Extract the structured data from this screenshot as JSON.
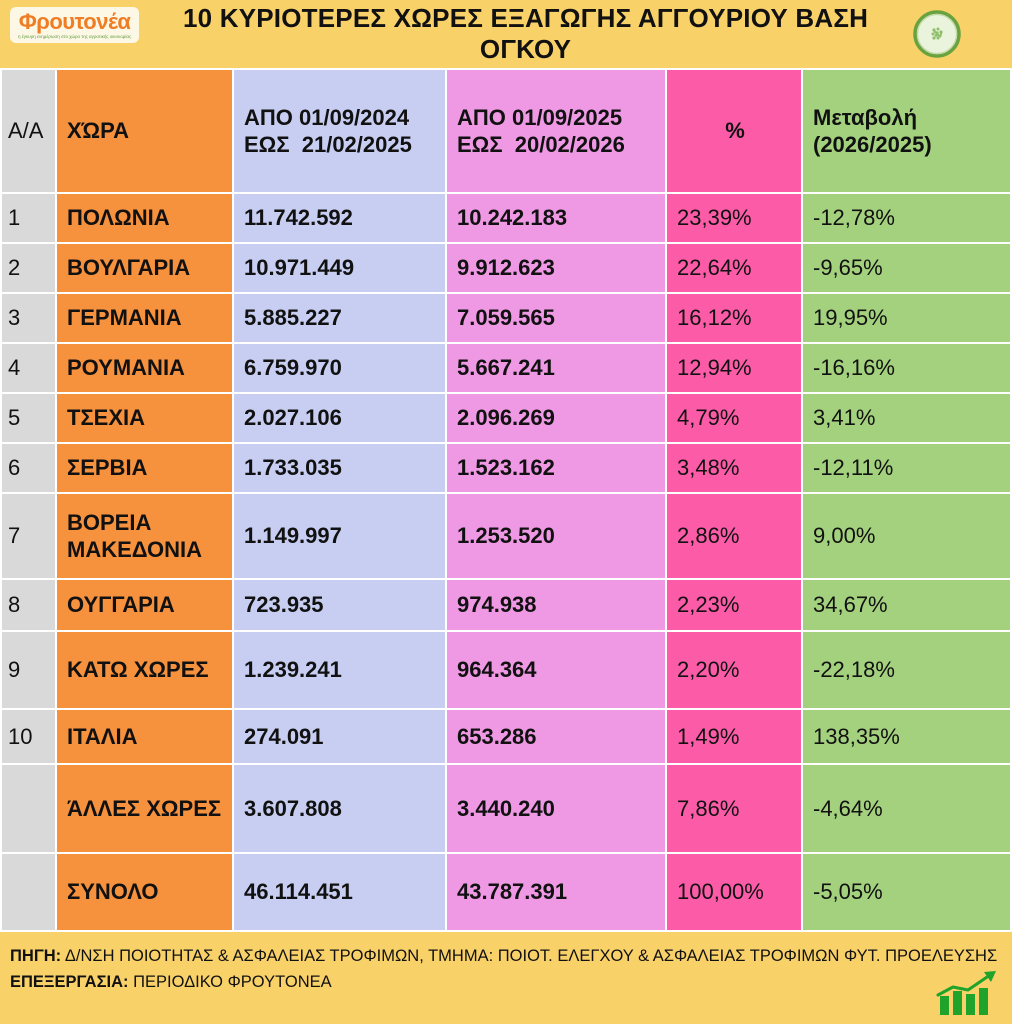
{
  "logo": {
    "name": "Φρουτονέα",
    "tagline": "η έγκυρη ενημέρωση στο χώρο της αγροτικής οικονομίας"
  },
  "header": {
    "title": "10 ΚΥΡΙΟΤΕΡΕΣ ΧΩΡΕΣ ΕΞΑΓΩΓΗΣ ΑΓΓΟΥΡΙΟΥ ΒΑΣΗ ΟΓΚΟΥ",
    "cucumber_icon": "cucumber-slice"
  },
  "table": {
    "columns": {
      "index": "A/A",
      "country": "ΧΏΡΑ",
      "period1": "ΑΠΟ 01/09/2024\nΕΩΣ  21/02/2025",
      "period2": "ΑΠΟ 01/09/2025\nΕΩΣ  20/02/2026",
      "percent": "%",
      "change": "Μεταβολή\n(2026/2025)"
    },
    "rows": [
      {
        "num": "1",
        "country": "ΠΟΛΩΝΙΑ",
        "v2024": "11.742.592",
        "v2025": "10.242.183",
        "pct": "23,39%",
        "change": "-12,78%"
      },
      {
        "num": "2",
        "country": "ΒΟΥΛΓΑΡΙΑ",
        "v2024": "10.971.449",
        "v2025": "9.912.623",
        "pct": "22,64%",
        "change": "-9,65%"
      },
      {
        "num": "3",
        "country": "ΓΕΡΜΑΝΙΑ",
        "v2024": "5.885.227",
        "v2025": "7.059.565",
        "pct": "16,12%",
        "change": "19,95%"
      },
      {
        "num": "4",
        "country": "ΡΟΥΜΑΝΙΑ",
        "v2024": "6.759.970",
        "v2025": "5.667.241",
        "pct": "12,94%",
        "change": "-16,16%"
      },
      {
        "num": "5",
        "country": "ΤΣΕΧΙΑ",
        "v2024": "2.027.106",
        "v2025": "2.096.269",
        "pct": "4,79%",
        "change": "3,41%"
      },
      {
        "num": "6",
        "country": "ΣΕΡΒΙΑ",
        "v2024": "1.733.035",
        "v2025": "1.523.162",
        "pct": "3,48%",
        "change": "-12,11%"
      },
      {
        "num": "7",
        "country": "ΒΟΡΕΙΑ ΜΑΚΕΔΟΝΙΑ",
        "v2024": "1.149.997",
        "v2025": "1.253.520",
        "pct": "2,86%",
        "change": "9,00%"
      },
      {
        "num": "8",
        "country": "ΟΥΓΓΑΡΙΑ",
        "v2024": "723.935",
        "v2025": "974.938",
        "pct": "2,23%",
        "change": "34,67%"
      },
      {
        "num": "9",
        "country": "ΚΑΤΩ ΧΩΡΕΣ",
        "v2024": "1.239.241",
        "v2025": "964.364",
        "pct": "2,20%",
        "change": "-22,18%"
      },
      {
        "num": "10",
        "country": "ΙΤΑΛΙΑ",
        "v2024": "274.091",
        "v2025": "653.286",
        "pct": "1,49%",
        "change": "138,35%"
      },
      {
        "num": "",
        "country": "ΆΛΛΕΣ ΧΩΡΕΣ",
        "v2024": "3.607.808",
        "v2025": "3.440.240",
        "pct": "7,86%",
        "change": "-4,64%"
      },
      {
        "num": "",
        "country": "ΣΥΝΟΛΟ",
        "v2024": "46.114.451",
        "v2025": "43.787.391",
        "pct": "100,00%",
        "change": "-5,05%"
      }
    ]
  },
  "footer": {
    "source_label": "ΠΗΓΗ:",
    "source_text": " Δ/ΝΣΗ ΠΟΙΟΤΗΤΑΣ & ΑΣΦΑΛΕΙΑΣ ΤΡΟΦΙΜΩΝ, ΤΜΗΜΑ: ΠΟΙΟΤ. ΕΛΕΓΧΟΥ & ΑΣΦΑΛΕΙΑΣ ΤΡΟΦΙΜΩΝ ΦΥΤ. ΠΡΟΕΛΕΥΣΗΣ",
    "processing_label": "ΕΠΕΞΕΡΓΑΣΙΑ:",
    "processing_text": " ΠΕΡΙΟΔΙΚΟ ΦΡΟΥΤΟΝΕΑ",
    "growth_icon": "bar-chart-up-arrow"
  },
  "colors": {
    "background_yellow": "#F9D169",
    "column_index_gray": "#D9D9D9",
    "column_country_orange": "#F6913E",
    "column_period1_lavender": "#C8CEF1",
    "column_period2_pink": "#EF99E5",
    "column_percent_hot_pink": "#FC5BA8",
    "column_change_green": "#A4D17E",
    "logo_orange": "#EF7D23",
    "icon_green": "#1FA32A"
  },
  "chart_data": {
    "type": "table",
    "title": "10 ΚΥΡΙΟΤΕΡΕΣ ΧΩΡΕΣ ΕΞΑΓΩΓΗΣ ΑΓΓΟΥΡΙΟΥ ΒΑΣΗ ΟΓΚΟΥ",
    "columns": [
      "A/A",
      "ΧΏΡΑ",
      "ΑΠΟ 01/09/2024 ΕΩΣ 21/02/2025",
      "ΑΠΟ 01/09/2025 ΕΩΣ 20/02/2026",
      "%",
      "Μεταβολή (2026/2025)"
    ],
    "rows": [
      [
        "1",
        "ΠΟΛΩΝΙΑ",
        11742592,
        10242183,
        "23,39%",
        "-12,78%"
      ],
      [
        "2",
        "ΒΟΥΛΓΑΡΙΑ",
        10971449,
        9912623,
        "22,64%",
        "-9,65%"
      ],
      [
        "3",
        "ΓΕΡΜΑΝΙΑ",
        5885227,
        7059565,
        "16,12%",
        "19,95%"
      ],
      [
        "4",
        "ΡΟΥΜΑΝΙΑ",
        6759970,
        5667241,
        "12,94%",
        "-16,16%"
      ],
      [
        "5",
        "ΤΣΕΧΙΑ",
        2027106,
        2096269,
        "4,79%",
        "3,41%"
      ],
      [
        "6",
        "ΣΕΡΒΙΑ",
        1733035,
        1523162,
        "3,48%",
        "-12,11%"
      ],
      [
        "7",
        "ΒΟΡΕΙΑ ΜΑΚΕΔΟΝΙΑ",
        1149997,
        1253520,
        "2,86%",
        "9,00%"
      ],
      [
        "8",
        "ΟΥΓΓΑΡΙΑ",
        723935,
        974938,
        "2,23%",
        "34,67%"
      ],
      [
        "9",
        "ΚΑΤΩ ΧΩΡΕΣ",
        1239241,
        964364,
        "2,20%",
        "-22,18%"
      ],
      [
        "10",
        "ΙΤΑΛΙΑ",
        274091,
        653286,
        "1,49%",
        "138,35%"
      ],
      [
        "",
        "ΆΛΛΕΣ ΧΩΡΕΣ",
        3607808,
        3440240,
        "7,86%",
        "-4,64%"
      ],
      [
        "",
        "ΣΥΝΟΛΟ",
        46114451,
        43787391,
        "100,00%",
        "-5,05%"
      ]
    ]
  }
}
